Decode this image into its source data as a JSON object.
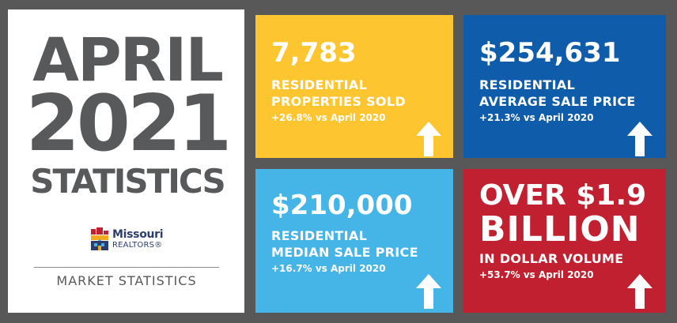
{
  "headline": {
    "month": "APRIL",
    "year": "2021",
    "subtitle": "STATISTICS"
  },
  "logo": {
    "name": "Missouri",
    "sub": "REALTORS®"
  },
  "footer": {
    "label": "MARKET STATISTICS"
  },
  "stats": [
    {
      "value": "7,783",
      "label_lines": [
        "RESIDENTIAL",
        "PROPERTIES SOLD"
      ],
      "change": "+26.8% vs April 2020",
      "color": "#fdc530"
    },
    {
      "value": "$254,631",
      "label_lines": [
        "RESIDENTIAL",
        "AVERAGE SALE PRICE"
      ],
      "change": "+21.3% vs April 2020",
      "color": "#0f5cab"
    },
    {
      "value": "$210,000",
      "label_lines": [
        "RESIDENTIAL",
        "MEDIAN SALE PRICE"
      ],
      "change": "+16.7% vs April 2020",
      "color": "#45b5e8"
    },
    {
      "value_lines": [
        "OVER $1.9",
        "BILLION"
      ],
      "label_lines": [
        "IN DOLLAR VOLUME"
      ],
      "change": "+53.7% vs April 2020",
      "color": "#c0202f"
    }
  ],
  "icons": {
    "trend": "up-arrow-icon"
  }
}
